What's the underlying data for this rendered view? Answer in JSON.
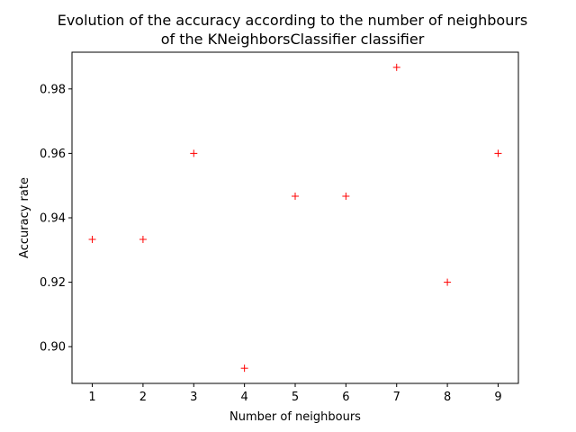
{
  "chart_data": {
    "type": "scatter",
    "title_lines": [
      "Evolution of the accuracy according to the number of neighbours",
      "of the KNeighborsClassifier classifier"
    ],
    "xlabel": "Number of neighbours",
    "ylabel": "Accuracy rate",
    "x": [
      1,
      2,
      3,
      4,
      5,
      6,
      7,
      8,
      9
    ],
    "y": [
      0.9333,
      0.9333,
      0.96,
      0.8933,
      0.9467,
      0.9467,
      0.9867,
      0.92,
      0.96
    ],
    "xlim": [
      0.6,
      9.4
    ],
    "ylim": [
      0.8886,
      0.9914
    ],
    "xticks": [
      1,
      2,
      3,
      4,
      5,
      6,
      7,
      8,
      9
    ],
    "xtick_labels": [
      "1",
      "2",
      "3",
      "4",
      "5",
      "6",
      "7",
      "8",
      "9"
    ],
    "yticks": [
      0.9,
      0.92,
      0.94,
      0.96,
      0.98
    ],
    "ytick_labels": [
      "0.90",
      "0.92",
      "0.94",
      "0.96",
      "0.98"
    ],
    "marker": "+",
    "marker_color": "#ff0000",
    "grid": false
  }
}
